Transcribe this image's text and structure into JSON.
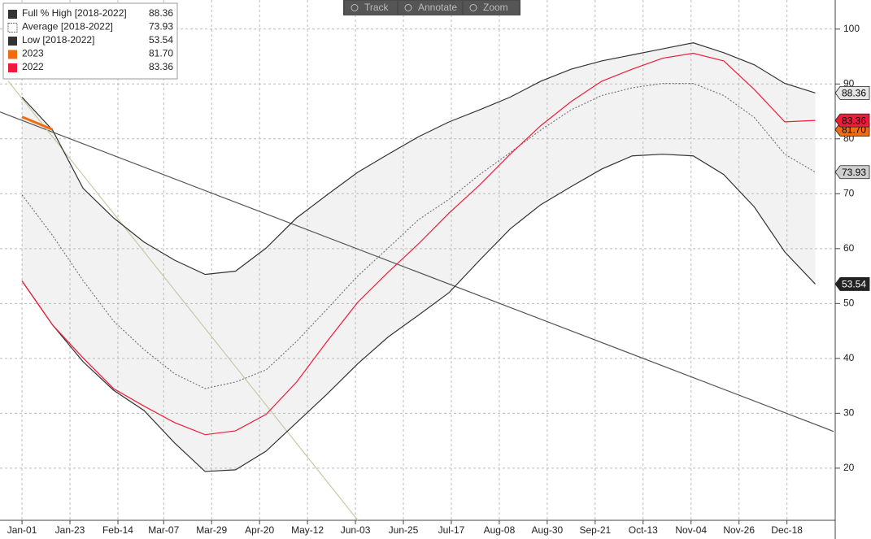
{
  "chart_data": {
    "type": "line",
    "xticks": [
      {
        "value": 0,
        "label": "Jan-01"
      },
      {
        "value": 22,
        "label": "Jan-23"
      },
      {
        "value": 44,
        "label": "Feb-14"
      },
      {
        "value": 65,
        "label": "Mar-07"
      },
      {
        "value": 87,
        "label": "Mar-29"
      },
      {
        "value": 109,
        "label": "Apr-20"
      },
      {
        "value": 131,
        "label": "May-12"
      },
      {
        "value": 153,
        "label": "Jun-03"
      },
      {
        "value": 175,
        "label": "Jun-25"
      },
      {
        "value": 197,
        "label": "Jul-17"
      },
      {
        "value": 219,
        "label": "Aug-08"
      },
      {
        "value": 241,
        "label": "Aug-30"
      },
      {
        "value": 263,
        "label": "Sep-21"
      },
      {
        "value": 285,
        "label": "Oct-13"
      },
      {
        "value": 307,
        "label": "Nov-04"
      },
      {
        "value": 329,
        "label": "Nov-26"
      },
      {
        "value": 351,
        "label": "Dec-18"
      }
    ],
    "xlim": [
      -10.1,
      372.4
    ],
    "ylim": [
      10.5,
      105.3
    ],
    "yticks": [
      20,
      30,
      40,
      50,
      60,
      70,
      80,
      90,
      100
    ],
    "grid": true,
    "legend": "top-left",
    "band_color": "#f2f2f2",
    "x": [
      0,
      14,
      28,
      42,
      56,
      70,
      84,
      98,
      112,
      126,
      140,
      154,
      168,
      182,
      196,
      210,
      224,
      238,
      252,
      266,
      280,
      294,
      308,
      322,
      336,
      350,
      364
    ],
    "series": [
      {
        "name": "Full % High [2018-2022]",
        "color": "#333333",
        "style": "solid",
        "tag_color": "#e6e6e6",
        "tag_text": "#000000",
        "last_value_label": "88.36",
        "values": [
          87.6,
          81.6,
          71,
          65.6,
          61.2,
          57.9,
          55.3,
          55.9,
          60.1,
          65.6,
          69.8,
          73.9,
          77.2,
          80.4,
          83.1,
          85.3,
          87.6,
          90.5,
          92.7,
          94.2,
          95.3,
          96.4,
          97.5,
          95.7,
          93.5,
          90.1,
          88.36
        ]
      },
      {
        "name": "Average  [2018-2022]",
        "color": "#777777",
        "style": "dotted",
        "tag_color": "#cfcfcf",
        "tag_text": "#000000",
        "last_value_label": "73.93",
        "values": [
          69.8,
          62.4,
          54.2,
          46.8,
          41.6,
          37.2,
          34.5,
          35.7,
          37.9,
          43.1,
          49,
          55,
          60.1,
          65.3,
          69,
          73.5,
          77.5,
          81.6,
          85.3,
          87.9,
          89.3,
          90.1,
          90.1,
          87.9,
          83.9,
          77.2,
          73.93
        ]
      },
      {
        "name": "Low  [2018-2022]",
        "color": "#333333",
        "style": "solid",
        "tag_color": "#222222",
        "tag_text": "#ffffff",
        "last_value_label": "53.54",
        "values": [
          54.1,
          46.1,
          39.4,
          34.2,
          30.5,
          24.6,
          19.4,
          19.7,
          23.1,
          28.3,
          33.5,
          39,
          43.9,
          47.9,
          52,
          57.9,
          63.6,
          68,
          71.3,
          74.5,
          76.9,
          77.2,
          76.9,
          73.5,
          67.6,
          59.4,
          53.54
        ]
      },
      {
        "name": "2023",
        "color": "#f26b0f",
        "style": "solid",
        "tag_color": "#f26b0f",
        "tag_text": "#000000",
        "last_value_label": "81.70",
        "values": [
          84.0,
          81.7,
          null,
          null,
          null,
          null,
          null,
          null,
          null,
          null,
          null,
          null,
          null,
          null,
          null,
          null,
          null,
          null,
          null,
          null,
          null,
          null,
          null,
          null,
          null,
          null,
          null
        ]
      },
      {
        "name": "2022",
        "color": "#ee1c3a",
        "style": "solid",
        "tag_color": "#ee1c3a",
        "tag_text": "#000000",
        "last_value_label": "83.36",
        "values": [
          54.1,
          46.1,
          40.1,
          34.5,
          31.3,
          28.3,
          26.1,
          26.8,
          29.8,
          35.7,
          43.1,
          50.2,
          55.7,
          60.9,
          66.5,
          71.6,
          77.2,
          82.4,
          86.8,
          90.5,
          92.7,
          94.7,
          95.6,
          94.2,
          89,
          83.1,
          83.36
        ]
      }
    ],
    "trendlines": [
      {
        "color": "#555555",
        "x": [
          -10.1,
          372.4
        ],
        "y": [
          84.9,
          26.7
        ]
      },
      {
        "color": "#c8c8a8",
        "x": [
          -6.3,
          154.1
        ],
        "y": [
          90.5,
          10.5
        ]
      }
    ]
  },
  "toolbar": {
    "buttons": [
      "Track",
      "Annotate",
      "Zoom"
    ]
  }
}
